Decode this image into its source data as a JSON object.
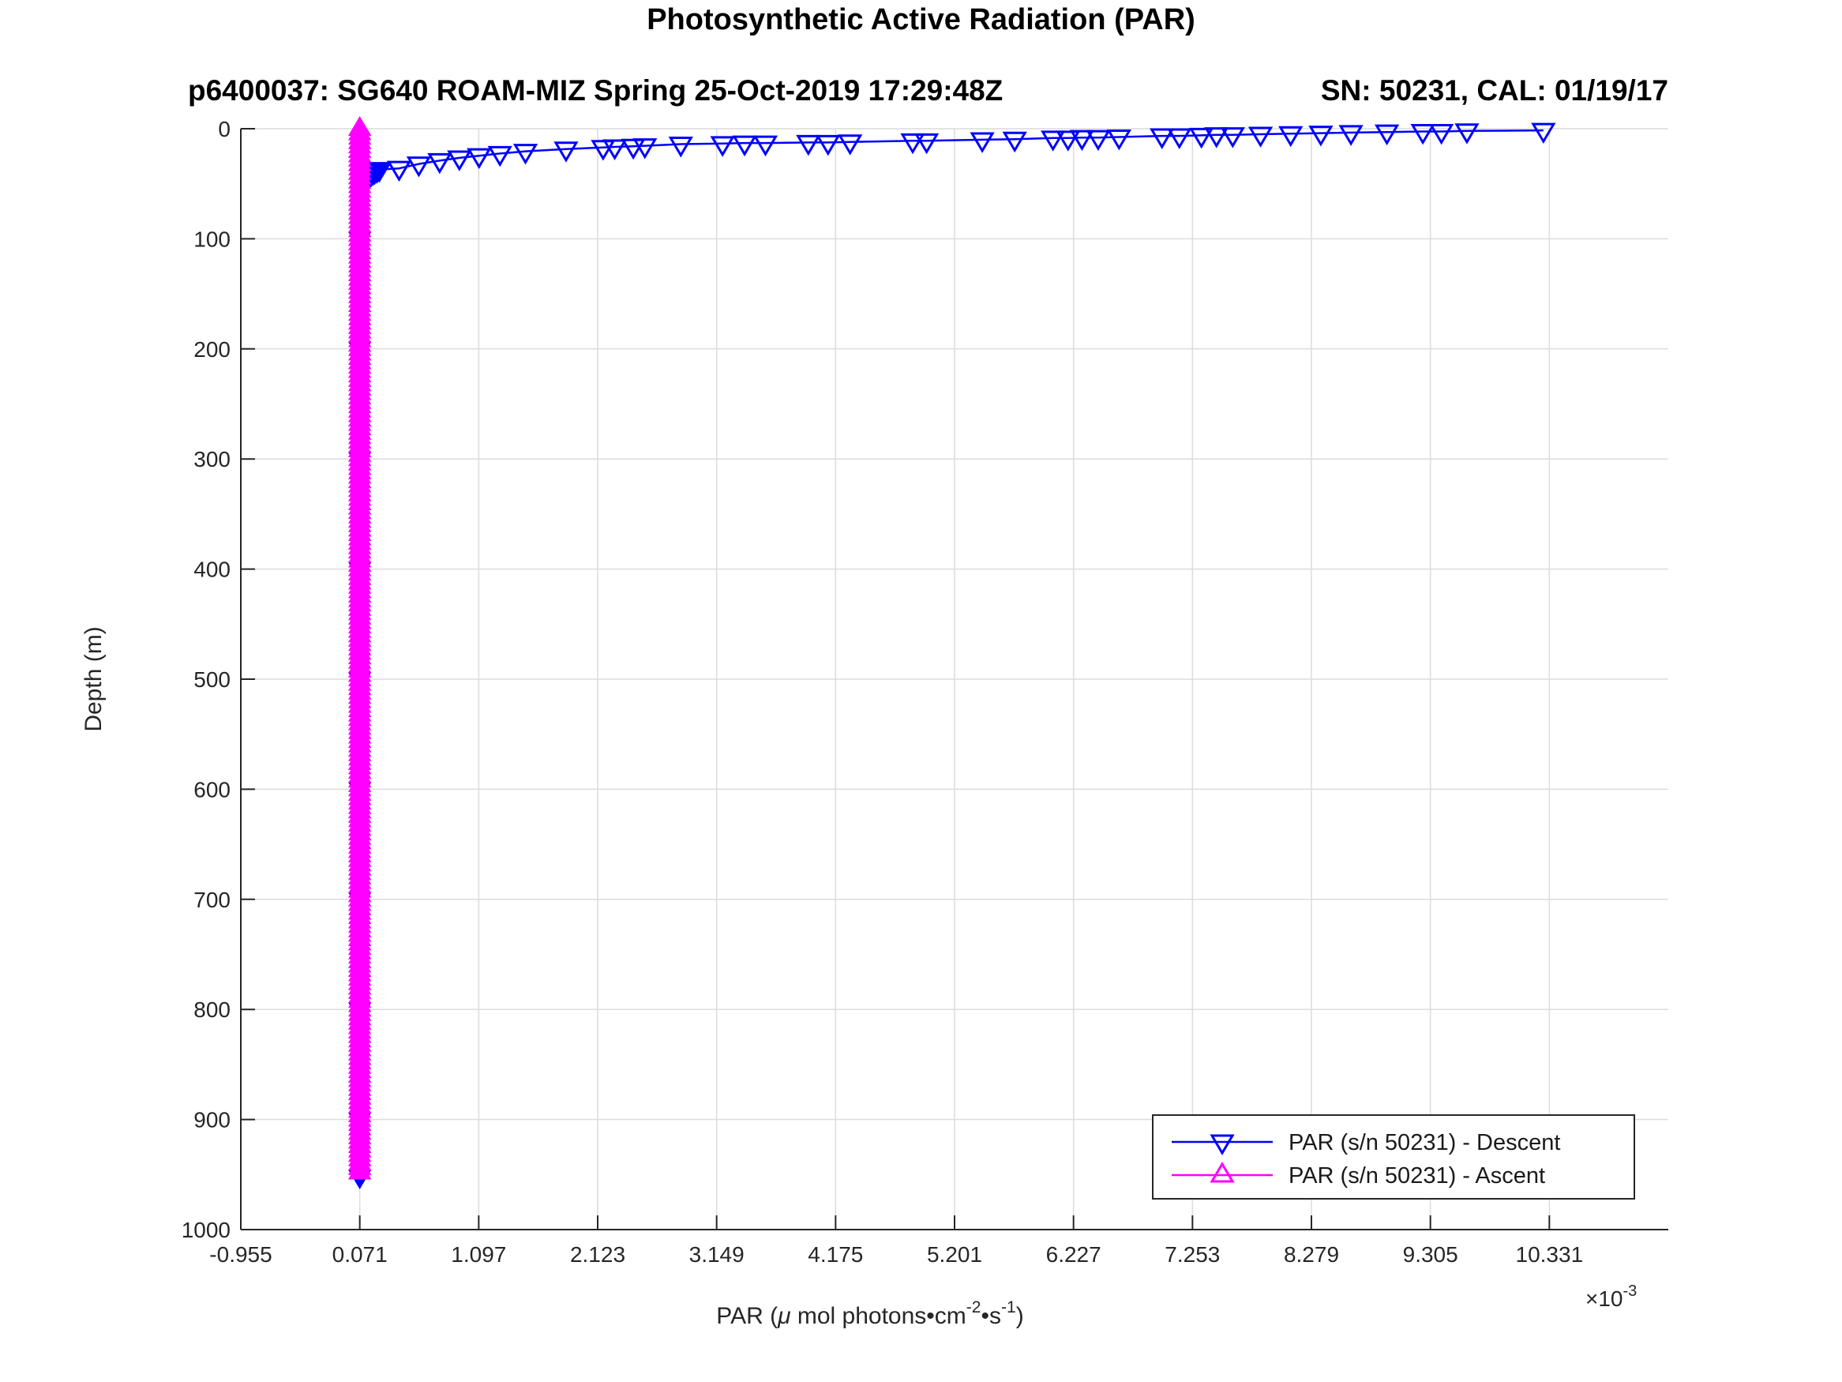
{
  "chart_data": {
    "type": "line",
    "title": "Photosynthetic Active Radiation (PAR)",
    "axes_title": {
      "left": "p6400037: SG640 ROAM-MIZ Spring 25-Oct-2019 17:29:48Z",
      "right": "SN: 50231, CAL: 01/19/17"
    },
    "ylabel": "Depth (m)",
    "xlabel_parts": {
      "part1": "PAR (",
      "mu": "μ",
      "part2": " mol photons•cm",
      "sup1": "-2",
      "part3": "•s",
      "sup2": "-1",
      "part4": ")"
    },
    "x_multiplier": {
      "base": "×10",
      "sup": "-3"
    },
    "xlim": [
      -0.955,
      11.357
    ],
    "ylim": [
      0,
      1000
    ],
    "y_axis_reversed": true,
    "grid": true,
    "xtick_values": [
      -0.955,
      0.071,
      1.097,
      2.123,
      3.149,
      4.175,
      5.201,
      6.227,
      7.253,
      8.279,
      9.305,
      10.331
    ],
    "ytick_values": [
      0,
      100,
      200,
      300,
      400,
      500,
      600,
      700,
      800,
      900,
      1000
    ],
    "x_values_scale": "1e-3",
    "series": [
      {
        "name": "PAR (s/n 50231) - Descent",
        "color": "#0000ff",
        "marker": "triangle-down",
        "marker_filled": false,
        "points_v_depth": [
          [
            10.28,
            1.5
          ],
          [
            9.62,
            2
          ],
          [
            9.4,
            2.5
          ],
          [
            9.24,
            2.5
          ],
          [
            8.93,
            3
          ],
          [
            8.62,
            3.5
          ],
          [
            8.36,
            4
          ],
          [
            8.1,
            4.5
          ],
          [
            7.84,
            5
          ],
          [
            7.6,
            5.5
          ],
          [
            7.46,
            5.5
          ],
          [
            7.33,
            6
          ],
          [
            7.14,
            6.5
          ],
          [
            6.99,
            6.5
          ],
          [
            6.62,
            7.5
          ],
          [
            6.44,
            8
          ],
          [
            6.3,
            8
          ],
          [
            6.18,
            8.5
          ],
          [
            6.05,
            8.5
          ],
          [
            5.72,
            9.5
          ],
          [
            5.44,
            10
          ],
          [
            4.96,
            11
          ],
          [
            4.84,
            11
          ],
          [
            4.3,
            12
          ],
          [
            4.11,
            12.5
          ],
          [
            3.94,
            12.5
          ],
          [
            3.57,
            13
          ],
          [
            3.39,
            13
          ],
          [
            3.2,
            13.5
          ],
          [
            2.84,
            14
          ],
          [
            2.53,
            15.5
          ],
          [
            2.43,
            16
          ],
          [
            2.27,
            16.5
          ],
          [
            2.17,
            17
          ],
          [
            1.85,
            18.5
          ],
          [
            1.5,
            20.5
          ],
          [
            1.28,
            22.5
          ],
          [
            1.1,
            24.5
          ],
          [
            0.93,
            26.5
          ],
          [
            0.76,
            29
          ],
          [
            0.58,
            32
          ],
          [
            0.41,
            36
          ],
          [
            0.24,
            37
          ],
          [
            0.22,
            38
          ],
          [
            0.2,
            39
          ],
          [
            0.185,
            40
          ],
          [
            0.17,
            41
          ],
          [
            0.155,
            43
          ],
          [
            0.14,
            45
          ],
          [
            0.125,
            47
          ],
          [
            0.11,
            49
          ],
          [
            0.095,
            51
          ]
        ],
        "deep_points_v_depth": [
          [
            0.071,
            100
          ],
          [
            0.071,
            200
          ],
          [
            0.071,
            300
          ],
          [
            0.071,
            400
          ],
          [
            0.071,
            500
          ],
          [
            0.071,
            600
          ],
          [
            0.071,
            700
          ],
          [
            0.071,
            800
          ],
          [
            0.071,
            900
          ],
          [
            0.071,
            952
          ]
        ]
      },
      {
        "name": "PAR (s/n 50231) - Ascent",
        "color": "#ff00ff",
        "marker": "triangle-up",
        "marker_filled": true,
        "x_value": 0.071,
        "depth_top": 0,
        "depth_bottom": 948,
        "marker_step_m": 4
      }
    ],
    "legend": {
      "position": "bottom-right",
      "entries": [
        "PAR (s/n 50231) - Descent",
        "PAR (s/n 50231) - Ascent"
      ]
    }
  }
}
